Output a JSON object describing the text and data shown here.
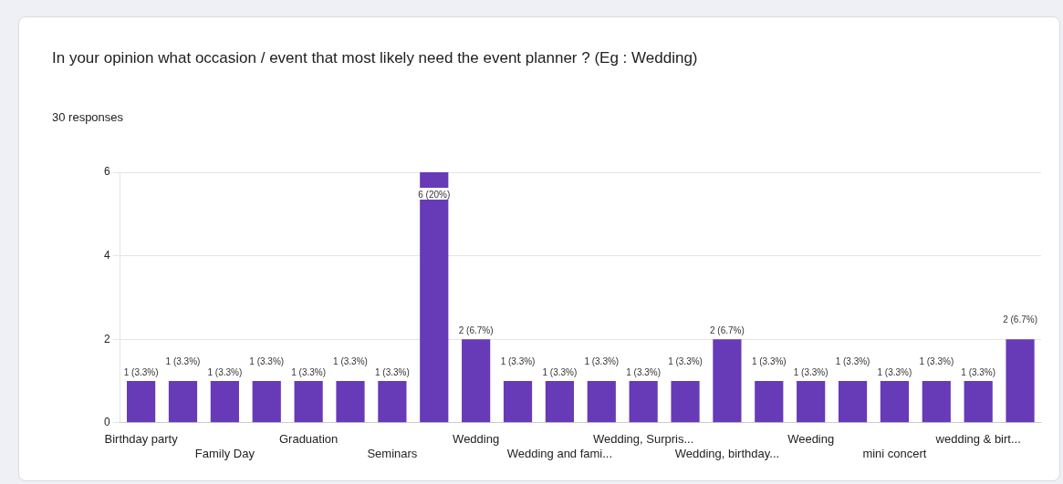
{
  "chart_data": {
    "type": "bar",
    "title": "In your opinion what occasion / event that most likely need the event planner ? (Eg : Wedding)",
    "subtitle": "30 responses",
    "categories": [
      "Birthday party",
      null,
      "Family Day",
      null,
      "Graduation",
      null,
      "Seminars",
      null,
      "Wedding",
      null,
      "Wedding and fami...",
      null,
      "Wedding, Surpris...",
      null,
      "Wedding, birthday...",
      null,
      "Weeding",
      null,
      "mini concert",
      null,
      "wedding & birt...",
      null
    ],
    "values": [
      1,
      1,
      1,
      1,
      1,
      1,
      1,
      6,
      2,
      1,
      1,
      1,
      1,
      1,
      2,
      1,
      1,
      1,
      1,
      1,
      1,
      2
    ],
    "value_labels": [
      "1 (3.3%)",
      "1 (3.3%)",
      "1 (3.3%)",
      "1 (3.3%)",
      "1 (3.3%)",
      "1 (3.3%)",
      "1 (3.3%)",
      "6 (20%)",
      "2 (6.7%)",
      "1 (3.3%)",
      "1 (3.3%)",
      "1 (3.3%)",
      "1 (3.3%)",
      "1 (3.3%)",
      "2 (6.7%)",
      "1 (3.3%)",
      "1 (3.3%)",
      "1 (3.3%)",
      "1 (3.3%)",
      "1 (3.3%)",
      "1 (3.3%)",
      "2 (6.7%)"
    ],
    "color": "#673ab7",
    "ylim": [
      0,
      6
    ],
    "yticks": [
      0,
      2,
      4,
      6
    ],
    "grid": "y"
  }
}
